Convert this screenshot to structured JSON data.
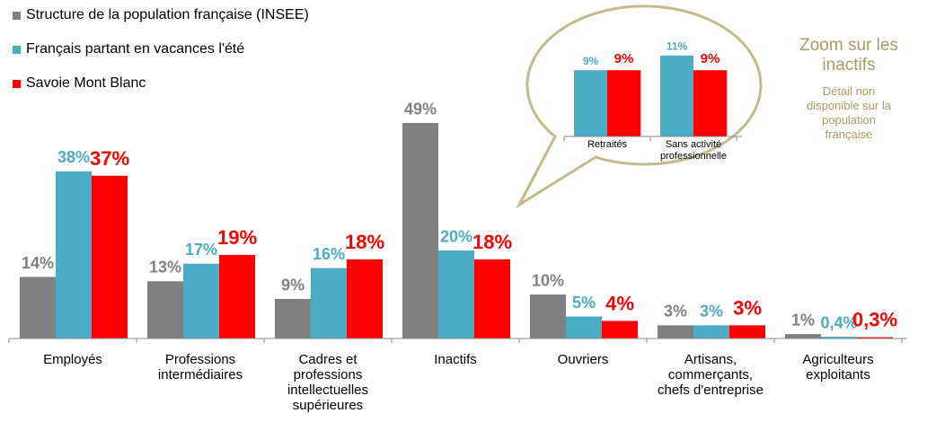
{
  "chart_data": [
    {
      "type": "bar",
      "categories": [
        "Employés",
        "Professions intermédiaires",
        "Cadres et professions intellectuelles supérieures",
        "Inactifs",
        "Ouvriers",
        "Artisans, commerçants, chefs d'entreprise",
        "Agriculteurs exploitants"
      ],
      "series": [
        {
          "name": "Structure de la population française (INSEE)",
          "color": "#808080",
          "values": [
            14,
            13,
            9,
            49,
            10,
            3,
            1
          ],
          "value_labels": [
            "14%",
            "13%",
            "9%",
            "49%",
            "10%",
            "3%",
            "1%"
          ]
        },
        {
          "name": "Français partant en vacances l'été",
          "color": "#4bacc6",
          "values": [
            38,
            17,
            16,
            20,
            5,
            3,
            0.4
          ],
          "value_labels": [
            "38%",
            "17%",
            "16%",
            "20%",
            "5%",
            "3%",
            "0,4%"
          ]
        },
        {
          "name": "Savoie Mont Blanc",
          "color": "#ff0000",
          "values": [
            37,
            19,
            18,
            18,
            4,
            3,
            0.3
          ],
          "value_labels": [
            "37%",
            "19%",
            "18%",
            "18%",
            "4%",
            "3%",
            "0,3%"
          ]
        }
      ],
      "legend": "top-left"
    },
    {
      "type": "bar",
      "title": "Zoom sur les inactifs",
      "subtitle": "Détail non disponible sur la population française",
      "categories": [
        "Retraités",
        "Sans activité professionnelle"
      ],
      "series": [
        {
          "color": "#4bacc6",
          "values": [
            9,
            11
          ],
          "value_labels": [
            "9%",
            "11%"
          ]
        },
        {
          "color": "#ff0000",
          "values": [
            9,
            9
          ],
          "value_labels": [
            "9%",
            "9%"
          ]
        }
      ]
    }
  ]
}
